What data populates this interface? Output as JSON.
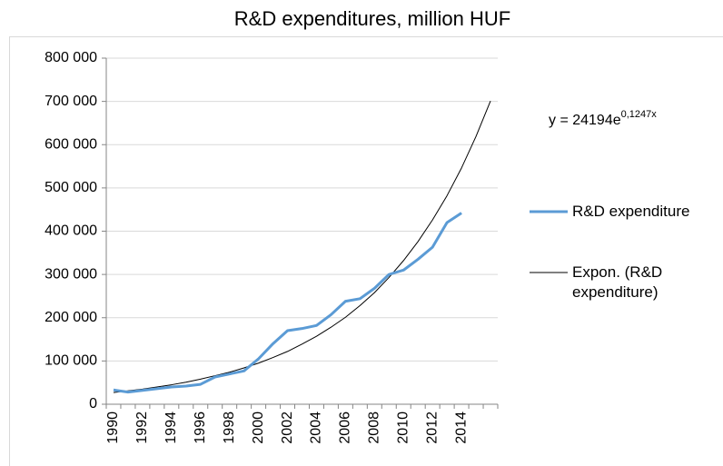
{
  "chart_data": {
    "type": "line",
    "title": "R&D expenditures, million HUF",
    "annotation": "y = 24194e",
    "annotation_exponent": "0,1247x",
    "categories": [
      "1990",
      null,
      "1992",
      null,
      "1994",
      null,
      "1996",
      null,
      "1998",
      null,
      "2000",
      null,
      "2002",
      null,
      "2004",
      null,
      "2006",
      null,
      "2008",
      null,
      "2010",
      null,
      "2012",
      null,
      "2014",
      null,
      null
    ],
    "series": [
      {
        "name": "R&D expenditure",
        "color": "#5b9bd5",
        "values": [
          33000,
          28000,
          32000,
          36000,
          40000,
          42000,
          46000,
          63000,
          70000,
          77000,
          105000,
          140000,
          170000,
          175000,
          182000,
          207000,
          238000,
          244000,
          268000,
          300000,
          310000,
          335000,
          363000,
          420000,
          442000,
          null,
          null
        ]
      },
      {
        "name": "Expon. (R&D expenditure)",
        "color": "#000000",
        "values": [
          27000,
          31000,
          35000,
          40000,
          45000,
          51000,
          58000,
          66000,
          74000,
          84000,
          95000,
          108000,
          122000,
          139000,
          157000,
          178000,
          201000,
          228000,
          258000,
          293000,
          332000,
          376000,
          426000,
          482000,
          546000,
          619000,
          701000
        ]
      }
    ],
    "ylim": [
      0,
      800000
    ],
    "yticks": [
      0,
      {
        "value": 100000,
        "label": "100 000"
      },
      {
        "value": 200000,
        "label": "200 000"
      },
      {
        "value": 300000,
        "label": "300 000"
      },
      {
        "value": 400000,
        "label": "400 000"
      },
      {
        "value": 500000,
        "label": "500 000"
      },
      {
        "value": 600000,
        "label": "600 000"
      },
      {
        "value": 700000,
        "label": "700 000"
      },
      {
        "value": 800000,
        "label": "800 000"
      }
    ],
    "grid": true
  }
}
